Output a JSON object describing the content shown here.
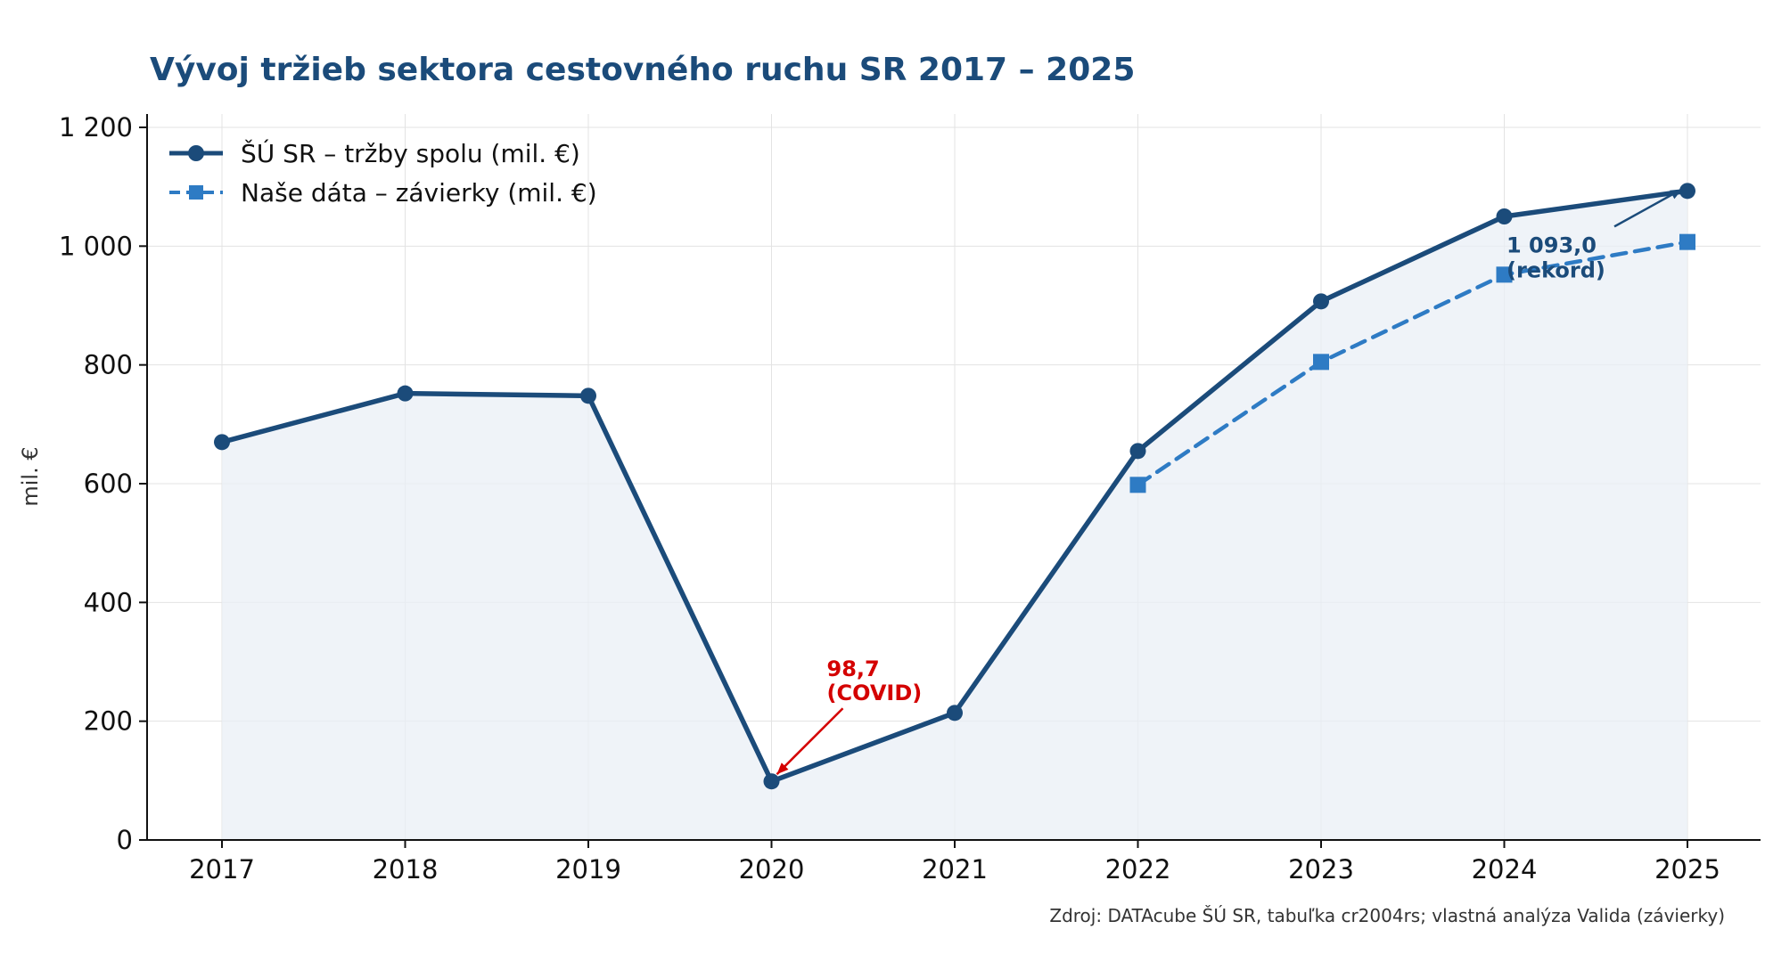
{
  "chart_data": {
    "type": "line",
    "title": "Vývoj tržieb sektora cestovného ruchu SR 2017 – 2025",
    "ylabel": "mil. €",
    "xlabel": "",
    "ylim": [
      0,
      1200
    ],
    "y_ticks": [
      0,
      200,
      400,
      600,
      800,
      1000,
      1200
    ],
    "y_tick_labels": [
      "0",
      "200",
      "400",
      "600",
      "800",
      "1 000",
      "1 200"
    ],
    "x": [
      "2017",
      "2018",
      "2019",
      "2020",
      "2021",
      "2022",
      "2023",
      "2024",
      "2025"
    ],
    "grid": true,
    "legend_position": "top-left",
    "series": [
      {
        "name": "ŠÚ SR – tržby spolu (mil. €)",
        "style": "solid-circle",
        "color": "#1b4b7a",
        "x": [
          "2017",
          "2018",
          "2019",
          "2020",
          "2021",
          "2022",
          "2023",
          "2024",
          "2025"
        ],
        "values": [
          670,
          752,
          748,
          98.7,
          214,
          655,
          907,
          1050,
          1093
        ]
      },
      {
        "name": "Naše dáta – závierky (mil. €)",
        "style": "dashed-square",
        "color": "#2e7bc4",
        "x": [
          "2022",
          "2023",
          "2024",
          "2025"
        ],
        "values": [
          598,
          805,
          952,
          1007
        ]
      }
    ],
    "annotations": [
      {
        "text_line1": "98,7",
        "text_line2": "(COVID)",
        "x": "2020",
        "y": 98.7,
        "color": "#d40000"
      },
      {
        "text_line1": "1 093,0",
        "text_line2": "(rekord)",
        "x": "2025",
        "y": 1093,
        "color": "#1b4b7a"
      }
    ],
    "source": "Zdroj: DATAcube ŠÚ SR, tabuľka cr2004rs; vlastná analýza Valida (závierky)"
  }
}
